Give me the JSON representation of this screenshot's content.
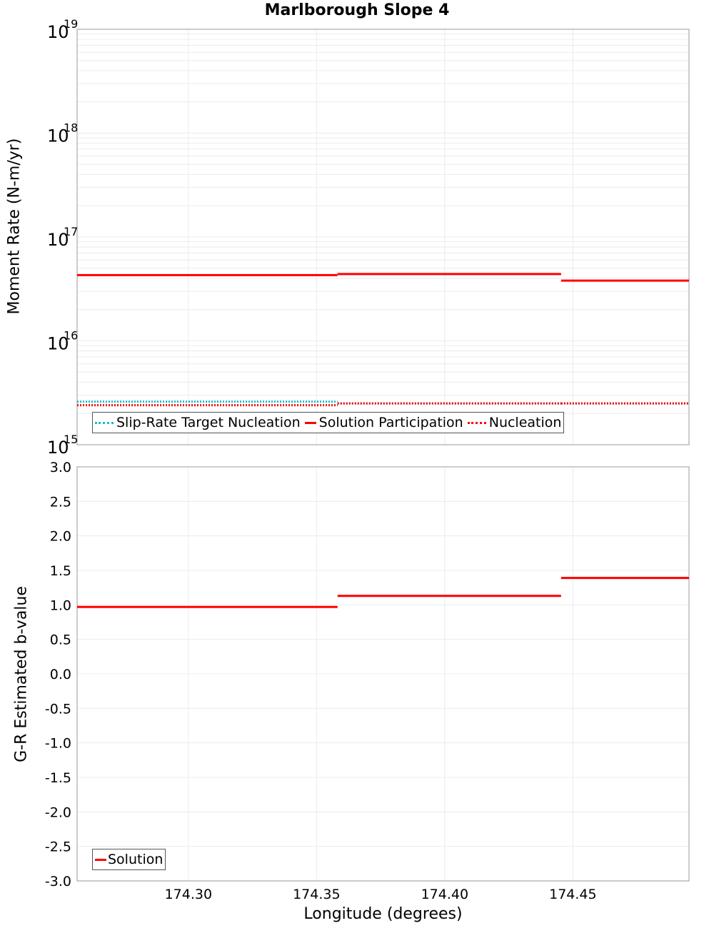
{
  "title": "Marlborough Slope 4",
  "chart_data": [
    {
      "type": "line",
      "title": "Marlborough Slope 4",
      "xlabel": "Longitude (degrees)",
      "ylabel": "Moment Rate (N-m/yr)",
      "yscale": "log",
      "ylim": [
        1000000000000000.0,
        1e+19
      ],
      "xlim": [
        174.2566,
        174.4953
      ],
      "yticks": [
        "10^15",
        "10^16",
        "10^17",
        "10^18",
        "10^19"
      ],
      "grid": true,
      "legend_position": "lower-left",
      "series": [
        {
          "name": "Slip-Rate Target Nucleation",
          "color": "#17becf",
          "style": "dotted",
          "segments": [
            [
              174.2566,
              174.3582,
              2600000000000000.0
            ],
            [
              174.3582,
              174.4454,
              2500000000000000.0
            ],
            [
              174.4454,
              174.4953,
              2500000000000000.0
            ]
          ]
        },
        {
          "name": "Solution Participation",
          "color": "#ff0000",
          "style": "solid",
          "segments": [
            [
              174.2566,
              174.3582,
              4.3e+16
            ],
            [
              174.3582,
              174.4454,
              4.4e+16
            ],
            [
              174.4454,
              174.4953,
              3.8e+16
            ]
          ]
        },
        {
          "name": "Nucleation",
          "color": "#ff0000",
          "style": "dotted",
          "segments": [
            [
              174.2566,
              174.3582,
              2400000000000000.0
            ],
            [
              174.3582,
              174.4454,
              2500000000000000.0
            ],
            [
              174.4454,
              174.4953,
              2500000000000000.0
            ]
          ]
        }
      ]
    },
    {
      "type": "line",
      "xlabel": "Longitude (degrees)",
      "ylabel": "G-R Estimated b-value",
      "ylim": [
        -3.0,
        3.0
      ],
      "xlim": [
        174.2566,
        174.4953
      ],
      "yticks": [
        "3.0",
        "2.5",
        "2.0",
        "1.5",
        "1.0",
        "0.5",
        "0.0",
        "-0.5",
        "-1.0",
        "-1.5",
        "-2.0",
        "-2.5",
        "-3.0"
      ],
      "xticks": [
        "174.30",
        "174.35",
        "174.40",
        "174.45"
      ],
      "grid": true,
      "legend_position": "lower-left",
      "series": [
        {
          "name": "Solution",
          "color": "#ff0000",
          "style": "solid",
          "segments": [
            [
              174.2566,
              174.3582,
              0.97
            ],
            [
              174.3582,
              174.4454,
              1.13
            ],
            [
              174.4454,
              174.4953,
              1.39
            ]
          ]
        }
      ]
    }
  ],
  "top": {
    "ylabel": "Moment Rate (N-m/yr)",
    "legend": [
      "Slip-Rate Target Nucleation",
      "Solution Participation",
      "Nucleation"
    ]
  },
  "bottom": {
    "ylabel": "G-R Estimated b-value",
    "xlabel": "Longitude (degrees)",
    "legend": [
      "Solution"
    ]
  }
}
